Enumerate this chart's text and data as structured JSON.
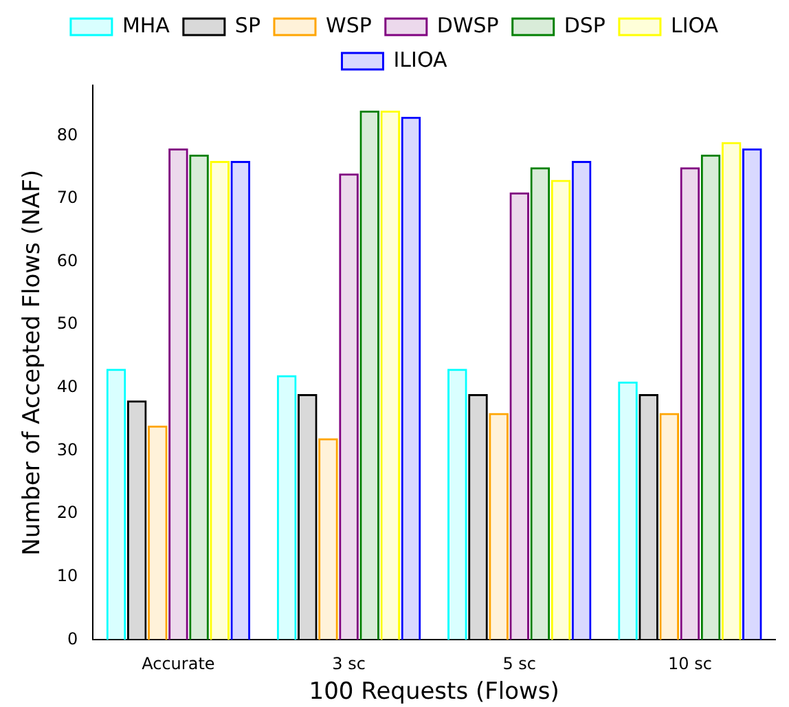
{
  "chart_data": {
    "type": "bar",
    "xlabel": "100 Requests (Flows)",
    "ylabel": "Number of Accepted Flows (NAF)",
    "categories": [
      "Accurate",
      "3 sc",
      "5 sc",
      "10 sc"
    ],
    "series": [
      {
        "name": "MHA",
        "color": "#00ffff",
        "values": [
          43,
          42,
          43,
          41
        ]
      },
      {
        "name": "SP",
        "color": "#000000",
        "values": [
          38,
          39,
          39,
          39
        ]
      },
      {
        "name": "WSP",
        "color": "#ffa500",
        "values": [
          34,
          32,
          36,
          36
        ]
      },
      {
        "name": "DWSP",
        "color": "#800080",
        "values": [
          78,
          74,
          71,
          75
        ]
      },
      {
        "name": "DSP",
        "color": "#008000",
        "values": [
          77,
          84,
          75,
          77
        ]
      },
      {
        "name": "LIOA",
        "color": "#ffff00",
        "values": [
          76,
          84,
          73,
          79
        ]
      },
      {
        "name": "ILIOA",
        "color": "#0000ff",
        "values": [
          76,
          83,
          76,
          78
        ]
      }
    ],
    "ylim": [
      0,
      88
    ],
    "yticks": [
      0,
      10,
      20,
      30,
      40,
      50,
      60,
      70,
      80
    ],
    "grid": false,
    "legend": "top"
  }
}
